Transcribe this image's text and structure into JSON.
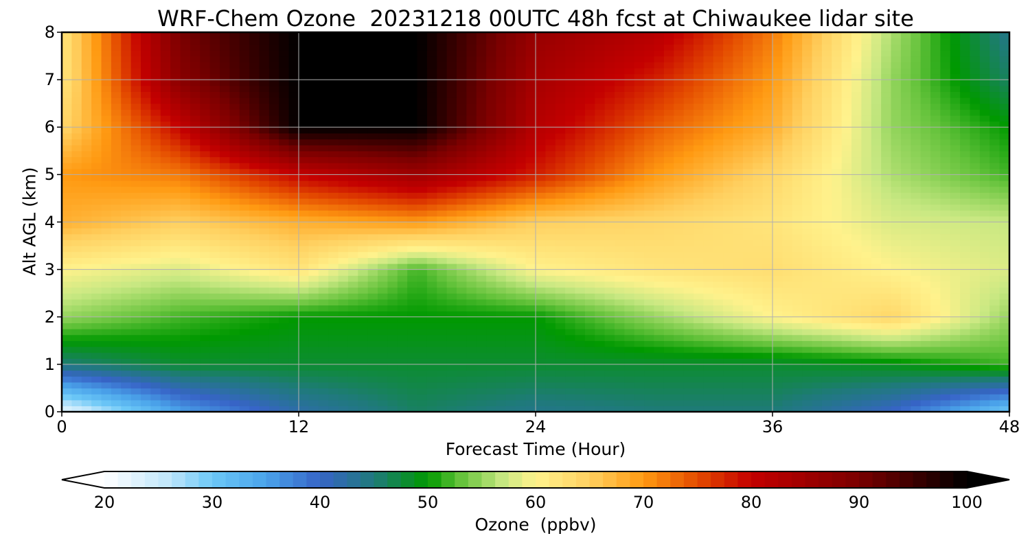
{
  "chart_data": {
    "type": "heatmap",
    "title": "WRF-Chem Ozone  20231218 00UTC 48h fcst at Chiwaukee lidar site",
    "xlabel": "Forecast Time (Hour)",
    "ylabel": "Alt AGL (km)",
    "xlim": [
      0,
      48
    ],
    "ylim": [
      0,
      8
    ],
    "xticks": [
      "0",
      "12",
      "24",
      "36",
      "48"
    ],
    "yticks": [
      "0",
      "1",
      "2",
      "3",
      "4",
      "5",
      "6",
      "7",
      "8"
    ],
    "grid": true,
    "x_hours": [
      0,
      6,
      12,
      18,
      24,
      30,
      36,
      42,
      48
    ],
    "z_km": [
      0,
      1,
      2,
      3,
      4,
      5,
      6,
      7,
      8
    ],
    "ozone_ppbv": [
      [
        22,
        35,
        42,
        46,
        44,
        45,
        45,
        40,
        30
      ],
      [
        45,
        48,
        48,
        48,
        48,
        48,
        48,
        49,
        52
      ],
      [
        55,
        52,
        50,
        50,
        50,
        55,
        60,
        64,
        55
      ],
      [
        60,
        58,
        62,
        52,
        60,
        62,
        63,
        60,
        58
      ],
      [
        68,
        65,
        68,
        70,
        65,
        64,
        62,
        58,
        57
      ],
      [
        70,
        72,
        80,
        85,
        78,
        70,
        64,
        56,
        52
      ],
      [
        64,
        80,
        100,
        100,
        82,
        74,
        68,
        55,
        50
      ],
      [
        62,
        88,
        100,
        100,
        84,
        78,
        70,
        55,
        46
      ],
      [
        62,
        90,
        100,
        100,
        86,
        82,
        72,
        56,
        44
      ]
    ],
    "colorbar": {
      "label": "Ozone  (ppbv)",
      "min": 20,
      "max": 100,
      "extend": "both",
      "ticks": [
        "20",
        "30",
        "40",
        "50",
        "60",
        "70",
        "80",
        "90",
        "100"
      ],
      "stops": [
        {
          "v": 20,
          "c": "#ffffff"
        },
        {
          "v": 26,
          "c": "#bfe6fb"
        },
        {
          "v": 30,
          "c": "#6cc8f7"
        },
        {
          "v": 35,
          "c": "#4aa3ea"
        },
        {
          "v": 40,
          "c": "#3764c7"
        },
        {
          "v": 45,
          "c": "#1f7a7a"
        },
        {
          "v": 50,
          "c": "#009900"
        },
        {
          "v": 53,
          "c": "#63c23a"
        },
        {
          "v": 57,
          "c": "#c8e882"
        },
        {
          "v": 60,
          "c": "#fff28c"
        },
        {
          "v": 65,
          "c": "#ffd060"
        },
        {
          "v": 70,
          "c": "#ff9a12"
        },
        {
          "v": 75,
          "c": "#e44b00"
        },
        {
          "v": 80,
          "c": "#c40000"
        },
        {
          "v": 90,
          "c": "#7a0000"
        },
        {
          "v": 100,
          "c": "#000000"
        }
      ]
    }
  }
}
